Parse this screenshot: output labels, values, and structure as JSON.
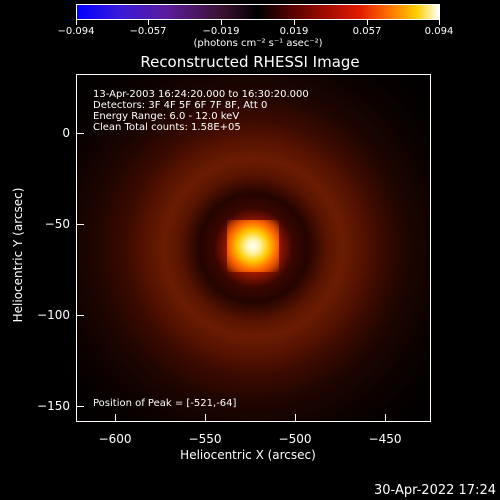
{
  "colorbar": {
    "labels": [
      "−0.094",
      "−0.057",
      "−0.019",
      "0.019",
      "0.057",
      "0.094"
    ],
    "unit": "(photons cm⁻² s⁻¹ asec⁻²)"
  },
  "title": "Reconstructed RHESSI Image",
  "info": {
    "time_range": "13-Apr-2003 16:24:20.000 to 16:30:20.000",
    "detectors": "Detectors: 3F 4F 5F 6F 7F 8F, Att 0",
    "energy": "Energy Range: 6.0 - 12.0 keV",
    "clean": "Clean    Total counts: 1.58E+05",
    "peak": "Position of Peak = [-521,-64]"
  },
  "axes": {
    "x_ticks": [
      "−600",
      "−550",
      "−500",
      "−450"
    ],
    "y_ticks": [
      "0",
      "−50",
      "−100",
      "−150"
    ],
    "xlabel": "Heliocentric X (arcsec)",
    "ylabel": "Heliocentric Y (arcsec)"
  },
  "timestamp": "30-Apr-2022 17:24"
}
